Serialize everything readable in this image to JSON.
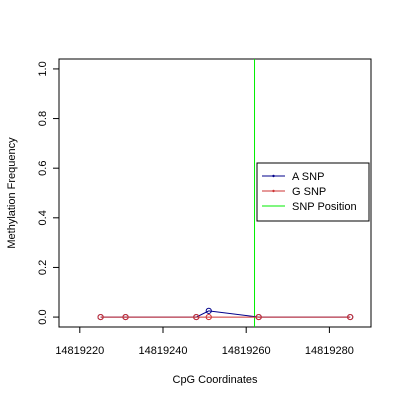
{
  "chart_data": {
    "type": "line",
    "title": "",
    "xlabel": "CpG Coordinates",
    "ylabel": "Methylation Frequency",
    "xlim": [
      14819215,
      14819290
    ],
    "ylim": [
      -0.04,
      1.04
    ],
    "x_ticks": [
      {
        "value": 14819220,
        "label": "14819220"
      },
      {
        "value": 14819240,
        "label": "14819240"
      },
      {
        "value": 14819260,
        "label": "14819260"
      },
      {
        "value": 14819280,
        "label": "14819280"
      }
    ],
    "y_ticks": [
      {
        "value": 0.0,
        "label": "0.0"
      },
      {
        "value": 0.2,
        "label": "0.2"
      },
      {
        "value": 0.4,
        "label": "0.4"
      },
      {
        "value": 0.6,
        "label": "0.6"
      },
      {
        "value": 0.8,
        "label": "0.8"
      },
      {
        "value": 1.0,
        "label": "1.0"
      }
    ],
    "series": [
      {
        "name": "A SNP",
        "color": "#00008b",
        "x": [
          14819225,
          14819231,
          14819248,
          14819251,
          14819263,
          14819285
        ],
        "y": [
          0.0,
          0.0,
          0.0,
          0.025,
          0.0,
          0.0
        ]
      },
      {
        "name": "G SNP",
        "color": "#cd3333",
        "x": [
          14819225,
          14819231,
          14819248,
          14819251,
          14819263,
          14819285
        ],
        "y": [
          0.0,
          0.0,
          0.0,
          0.0,
          0.0,
          0.0
        ]
      }
    ],
    "snp_position": {
      "name": "SNP Position",
      "x": 14819262,
      "color": "#00ee00"
    },
    "legend": {
      "placement": "right",
      "entries": [
        {
          "label": "A SNP",
          "color": "#00008b",
          "type": "line-marker"
        },
        {
          "label": "G SNP",
          "color": "#cd3333",
          "type": "line-marker"
        },
        {
          "label": "SNP Position",
          "color": "#00ee00",
          "type": "line"
        }
      ]
    },
    "grid": false
  }
}
